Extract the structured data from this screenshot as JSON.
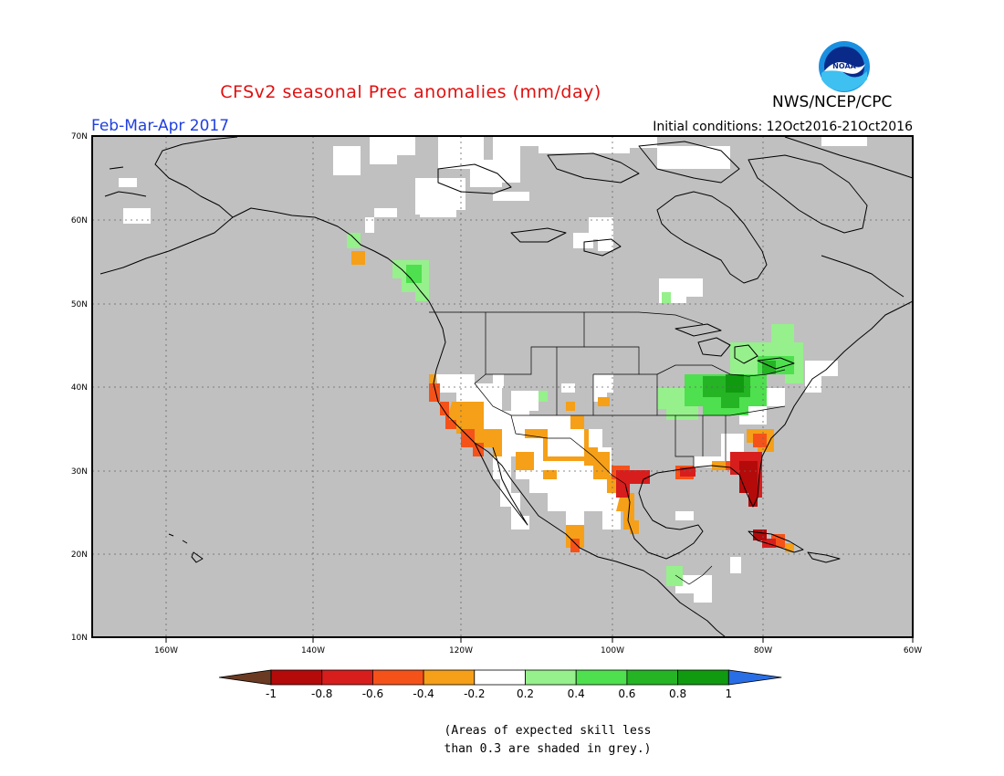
{
  "header": {
    "title": "CFSv2 seasonal Prec anomalies (mm/day)",
    "agency": "NWS/NCEP/CPC",
    "period": "Feb-Mar-Apr 2017",
    "initial_conditions": "Initial conditions: 12Oct2016-21Oct2016"
  },
  "logo": {
    "text": "NOAA"
  },
  "map": {
    "lon_range": [
      -172,
      -60
    ],
    "lat_range": [
      10,
      70
    ],
    "lon_ticks": [
      "160W",
      "140W",
      "120W",
      "100W",
      "80W",
      "60W"
    ],
    "lat_ticks": [
      "70N",
      "60N",
      "50N",
      "40N",
      "30N",
      "20N",
      "10N"
    ],
    "grey_meaning": "skill < 0.3"
  },
  "colorbar": {
    "labels": [
      "-1",
      "-0.8",
      "-0.6",
      "-0.4",
      "-0.2",
      "0.2",
      "0.4",
      "0.6",
      "0.8",
      "1"
    ],
    "colors": [
      "#6b3a22",
      "#b40a0a",
      "#d81d1d",
      "#f5521a",
      "#f5a018",
      "#ffffff",
      "#96f08c",
      "#4ee04e",
      "#24b424",
      "#109a10",
      "#2a6ee6"
    ]
  },
  "footnote": {
    "line1": "(Areas of expected skill less",
    "line2": "than 0.3 are shaded in grey.)"
  }
}
